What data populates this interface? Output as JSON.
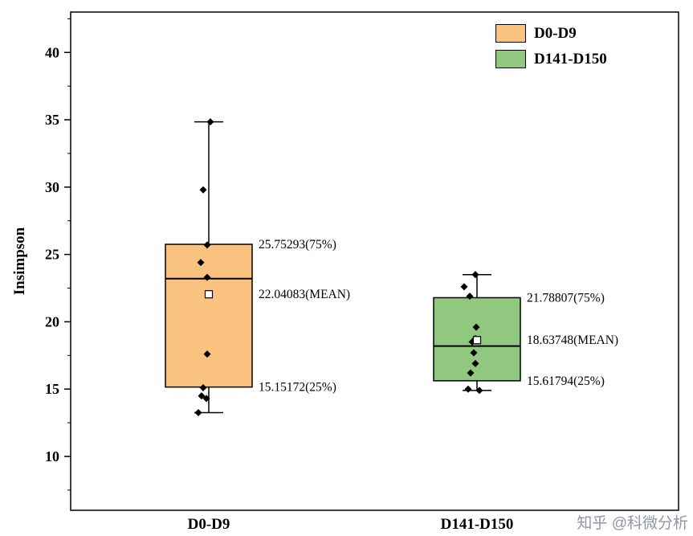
{
  "y_axis": {
    "label": "Insimpson"
  },
  "legend": {
    "items": [
      {
        "label": "D0-D9",
        "color": "#F9C37F"
      },
      {
        "label": "D141-D150",
        "color": "#8FC87E"
      }
    ]
  },
  "watermark": {
    "text": "知乎 @科微分析"
  },
  "chart_data": {
    "type": "box",
    "title": "",
    "xlabel": "",
    "ylabel": "Insimpson",
    "ylim": [
      6,
      43
    ],
    "yticks_major": [
      10,
      15,
      20,
      25,
      30,
      35,
      40
    ],
    "yticks_minor_step": 2.5,
    "categories": [
      "D0-D9",
      "D141-D150"
    ],
    "legend_position": "top-right",
    "grid": false,
    "groups": [
      {
        "name": "D0-D9",
        "color": "#F9C37F",
        "q1": 15.15172,
        "median": 23.2,
        "q3": 25.75293,
        "mean": 22.04083,
        "whisker_low": 13.25,
        "whisker_high": 34.85,
        "points": [
          34.85,
          29.8,
          25.7,
          24.4,
          23.3,
          17.6,
          15.1,
          14.5,
          14.3,
          13.25
        ],
        "point_dx": [
          2,
          -7,
          -2,
          -10,
          -2,
          -2,
          -7,
          -9,
          -3,
          -13
        ],
        "annotations": [
          {
            "value": 25.75293,
            "text": "25.75293(75%)"
          },
          {
            "value": 22.04083,
            "text": "22.04083(MEAN)"
          },
          {
            "value": 15.15172,
            "text": "15.15172(25%)"
          }
        ]
      },
      {
        "name": "D141-D150",
        "color": "#8FC87E",
        "q1": 15.61794,
        "median": 18.2,
        "q3": 21.78807,
        "mean": 18.63748,
        "whisker_low": 14.9,
        "whisker_high": 23.5,
        "points": [
          23.5,
          22.6,
          21.9,
          19.6,
          18.75,
          18.5,
          17.7,
          16.9,
          16.2,
          15.0,
          14.9
        ],
        "point_dx": [
          -2,
          -16,
          -9,
          -1,
          -2,
          -6,
          -4,
          -2,
          -8,
          -11,
          3
        ],
        "annotations": [
          {
            "value": 21.78807,
            "text": "21.78807(75%)"
          },
          {
            "value": 18.63748,
            "text": "18.63748(MEAN)"
          },
          {
            "value": 15.61794,
            "text": "15.61794(25%)"
          }
        ]
      }
    ]
  }
}
